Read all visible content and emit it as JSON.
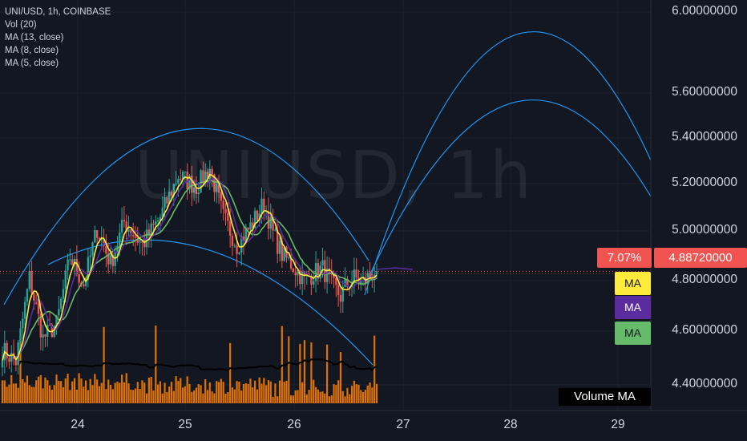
{
  "legend": {
    "symbol": "UNI/USD, 1h, COINBASE",
    "vol": "Vol (20)",
    "ma13": "MA (13, close)",
    "ma8": "MA (8, close)",
    "ma5": "MA (5, close)"
  },
  "watermark": "UNIUSD, 1h",
  "price_tag": "4.88720000",
  "pct_tag": "7.07%",
  "ma_tag_label": "MA",
  "vol_ma_label": "Volume MA",
  "colors": {
    "background": "#131722",
    "up": "#26a69a",
    "down": "#ef5350",
    "ma5": "#ffeb3b",
    "ma8": "#5b2c9f",
    "ma13": "#66bb6a",
    "volume": "#f57c00",
    "volume_ma": "#000000",
    "arcs": "#2196f3",
    "price_tag": "#f05350"
  },
  "chart_data": {
    "type": "candlestick",
    "title": "UNI/USD, 1h, COINBASE",
    "y_ticks": [
      "6.00000000",
      "5.60000000",
      "5.40000000",
      "5.20000000",
      "5.00000000",
      "4.80000000",
      "4.60000000",
      "4.40000000"
    ],
    "x_ticks": [
      "24",
      "25",
      "26",
      "27",
      "28",
      "29"
    ],
    "ylim": [
      4.32,
      6.05
    ],
    "last_price": 4.8872,
    "change_pct": 7.07,
    "series": [
      {
        "name": "MA (5, close)"
      },
      {
        "name": "MA (8, close)"
      },
      {
        "name": "MA (13, close)"
      },
      {
        "name": "Vol (20)"
      }
    ]
  }
}
